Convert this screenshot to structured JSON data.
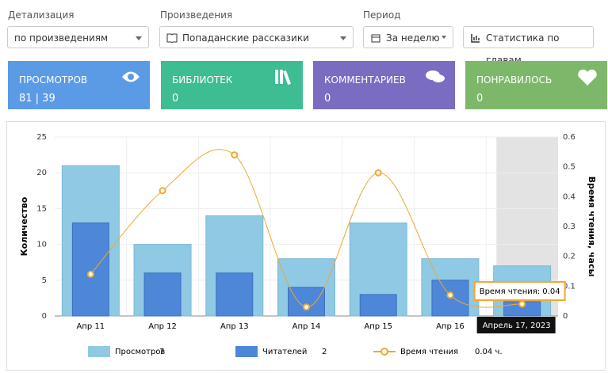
{
  "filters": [
    {
      "label": "Детализация",
      "value": "по произведениям"
    },
    {
      "label": "Произведения",
      "value": "Попаданские рассказики"
    },
    {
      "label": "Период",
      "value": "За неделю"
    }
  ],
  "button": "Статистика по главам",
  "cards": [
    {
      "title": "ПРОСМОТРОВ",
      "value": "81 | 39",
      "color": "#5b9be6"
    },
    {
      "title": "БИБЛИОТЕК",
      "value": "0",
      "color": "#3dbd91"
    },
    {
      "title": "КОММЕНТАРИЕВ",
      "value": "0",
      "color": "#7a6cc0"
    },
    {
      "title": "ПОНРАВИЛОСЬ",
      "value": "0",
      "color": "#7db86a"
    }
  ],
  "chart_data": {
    "type": "bar",
    "y_label": "Количество",
    "y2_label": "Время чтения, часы",
    "categories": [
      "Апр 11",
      "Апр 12",
      "Апр 13",
      "Апр 14",
      "Апр 15",
      "Апр 16",
      null
    ],
    "series": [
      {
        "name": "Просмотров",
        "color": "#8fc9e3",
        "values": [
          21,
          10,
          14,
          8,
          13,
          8,
          7
        ],
        "legend_value": "7"
      },
      {
        "name": "Читателей",
        "color": "#4f87d8",
        "values": [
          13,
          6,
          6,
          4,
          3,
          5,
          2
        ],
        "legend_value": "2"
      },
      {
        "name": "Время чтения",
        "color": "#f0a830",
        "type": "line",
        "axis": "y2",
        "values": [
          0.14,
          0.42,
          0.54,
          0.03,
          0.48,
          0.07,
          0.04
        ],
        "legend_value": "0.04 ч."
      }
    ],
    "ylim": [
      0,
      25
    ],
    "yticks": [
      0,
      5,
      10,
      15,
      20,
      25
    ],
    "y2lim": [
      0,
      0.6
    ],
    "y2ticks": [
      0,
      0.1,
      0.2,
      0.3,
      0.4,
      0.5,
      0.6
    ],
    "grid": true,
    "highlight": 6,
    "tooltip": {
      "title": "Апрель 17, 2023",
      "text": "Время чтения: 0.04"
    }
  }
}
